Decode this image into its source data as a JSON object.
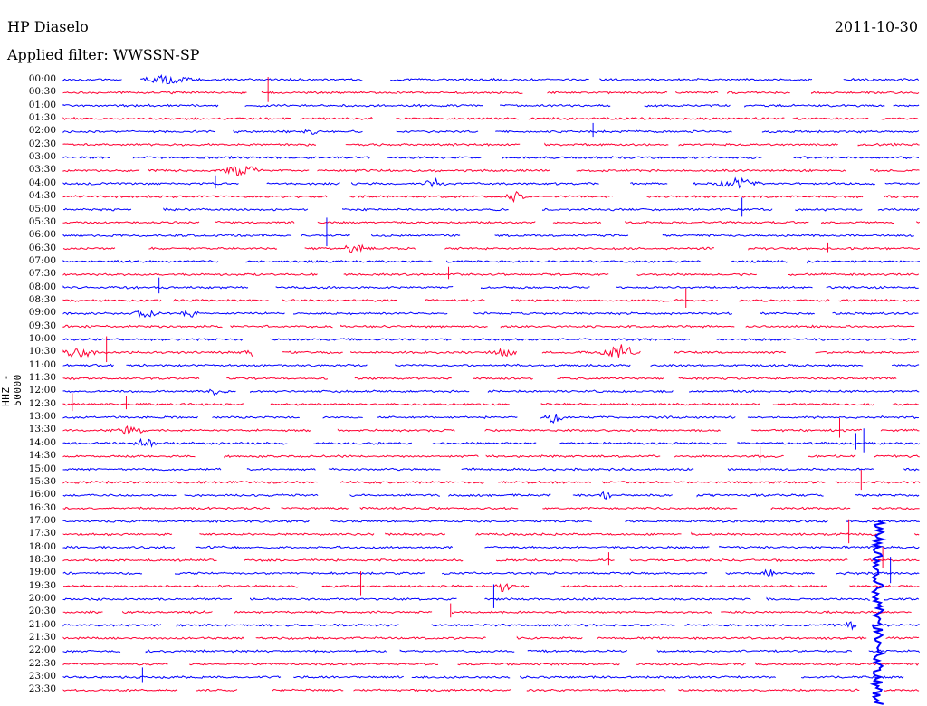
{
  "header": {
    "station": "HP Diaselo",
    "date": "2011-10-30",
    "filter": "Applied filter: WWSSN-SP"
  },
  "axis": {
    "ylabel": "HHZ - 50000"
  },
  "rows": [
    "00:00",
    "00:30",
    "01:00",
    "01:30",
    "02:00",
    "02:30",
    "03:00",
    "03:30",
    "04:00",
    "04:30",
    "05:00",
    "05:30",
    "06:00",
    "06:30",
    "07:00",
    "07:30",
    "08:00",
    "08:30",
    "09:00",
    "09:30",
    "10:00",
    "10:30",
    "11:00",
    "11:30",
    "12:00",
    "12:30",
    "13:00",
    "13:30",
    "14:00",
    "14:30",
    "15:00",
    "15:30",
    "16:00",
    "16:30",
    "17:00",
    "17:30",
    "18:00",
    "18:30",
    "19:00",
    "19:30",
    "20:00",
    "20:30",
    "21:00",
    "21:30",
    "22:00",
    "22:30",
    "23:00",
    "23:30"
  ],
  "colors": {
    "even_rows": "#0000ff",
    "odd_rows": "#ff0033"
  }
}
